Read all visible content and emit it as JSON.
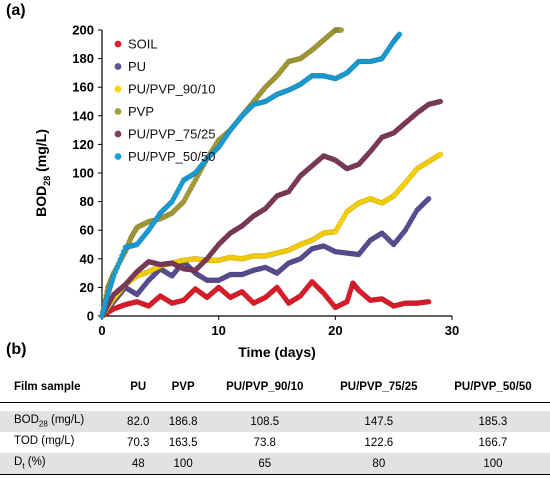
{
  "panel_a_label": "(a)",
  "panel_b_label": "(b)",
  "chart_data": {
    "type": "scatter",
    "xlabel": "Time (days)",
    "ylabel_main": "BOD",
    "ylabel_sub": "28",
    "ylabel_unit": " (mg/L)",
    "xlim": [
      0,
      30
    ],
    "ylim": [
      0,
      200
    ],
    "xticks": [
      "0",
      "10",
      "20",
      "30"
    ],
    "yticks": [
      "0",
      "20",
      "40",
      "60",
      "80",
      "100",
      "120",
      "140",
      "160",
      "180",
      "200"
    ],
    "legend_position": "top-left",
    "series": [
      {
        "name": "SOIL",
        "color": "#e31d2b",
        "points": [
          [
            0,
            0
          ],
          [
            1,
            5
          ],
          [
            2,
            8
          ],
          [
            3,
            10
          ],
          [
            4,
            7
          ],
          [
            5,
            14
          ],
          [
            6,
            9
          ],
          [
            7,
            11
          ],
          [
            8,
            19
          ],
          [
            9,
            13
          ],
          [
            10,
            20
          ],
          [
            11,
            13
          ],
          [
            12,
            17
          ],
          [
            13,
            9
          ],
          [
            14,
            13
          ],
          [
            15,
            20
          ],
          [
            16,
            9
          ],
          [
            17,
            14
          ],
          [
            18,
            24
          ],
          [
            19,
            16
          ],
          [
            20,
            6
          ],
          [
            21,
            10
          ],
          [
            21.5,
            23
          ],
          [
            22,
            18
          ],
          [
            23,
            11
          ],
          [
            24,
            12
          ],
          [
            25,
            7
          ],
          [
            26,
            9
          ],
          [
            27,
            9
          ],
          [
            28,
            10
          ]
        ]
      },
      {
        "name": "PU",
        "color": "#5c4f96",
        "points": [
          [
            0,
            0
          ],
          [
            1,
            10
          ],
          [
            2,
            20
          ],
          [
            3,
            15
          ],
          [
            4,
            25
          ],
          [
            5,
            33
          ],
          [
            6,
            28
          ],
          [
            7,
            38
          ],
          [
            8,
            30
          ],
          [
            9,
            25
          ],
          [
            10,
            25
          ],
          [
            11,
            29
          ],
          [
            12,
            29
          ],
          [
            13,
            32
          ],
          [
            14,
            34
          ],
          [
            15,
            30
          ],
          [
            16,
            37
          ],
          [
            17,
            40
          ],
          [
            18,
            47
          ],
          [
            19,
            49
          ],
          [
            20,
            45
          ],
          [
            21,
            44
          ],
          [
            22,
            43
          ],
          [
            23,
            53
          ],
          [
            24,
            58
          ],
          [
            25,
            50
          ],
          [
            26,
            60
          ],
          [
            27,
            74
          ],
          [
            28,
            82
          ]
        ]
      },
      {
        "name": "PU/PVP_90/10",
        "color": "#ffd700",
        "points": [
          [
            0,
            0
          ],
          [
            1,
            12
          ],
          [
            2,
            22
          ],
          [
            3,
            28
          ],
          [
            4,
            31
          ],
          [
            5,
            35
          ],
          [
            6,
            37
          ],
          [
            7,
            39
          ],
          [
            8,
            40
          ],
          [
            9,
            39
          ],
          [
            10,
            39
          ],
          [
            11,
            41
          ],
          [
            12,
            40
          ],
          [
            13,
            42
          ],
          [
            14,
            42
          ],
          [
            15,
            44
          ],
          [
            16,
            46
          ],
          [
            17,
            50
          ],
          [
            18,
            53
          ],
          [
            19,
            58
          ],
          [
            20,
            59
          ],
          [
            21,
            73
          ],
          [
            22,
            79
          ],
          [
            23,
            82
          ],
          [
            24,
            79
          ],
          [
            25,
            84
          ],
          [
            26,
            93
          ],
          [
            27,
            103
          ],
          [
            28,
            108
          ],
          [
            29,
            113
          ]
        ]
      },
      {
        "name": "PVP",
        "color": "#a69d35",
        "points": [
          [
            0,
            0
          ],
          [
            0.5,
            20
          ],
          [
            1,
            30
          ],
          [
            2,
            45
          ],
          [
            2.5,
            55
          ],
          [
            3,
            62
          ],
          [
            4,
            66
          ],
          [
            5,
            68
          ],
          [
            6,
            72
          ],
          [
            7,
            80
          ],
          [
            8,
            95
          ],
          [
            9,
            110
          ],
          [
            10,
            123
          ],
          [
            11,
            130
          ],
          [
            12,
            140
          ],
          [
            13,
            150
          ],
          [
            14,
            160
          ],
          [
            15,
            168
          ],
          [
            16,
            178
          ],
          [
            17,
            180
          ],
          [
            18,
            186
          ],
          [
            19,
            193
          ],
          [
            20,
            200
          ],
          [
            20.5,
            200
          ]
        ]
      },
      {
        "name": "PU/PVP_75/25",
        "color": "#7f3a5c",
        "points": [
          [
            0,
            0
          ],
          [
            1,
            15
          ],
          [
            2,
            22
          ],
          [
            3,
            31
          ],
          [
            4,
            38
          ],
          [
            5,
            36
          ],
          [
            6,
            37
          ],
          [
            7,
            33
          ],
          [
            8,
            32
          ],
          [
            9,
            40
          ],
          [
            10,
            50
          ],
          [
            11,
            58
          ],
          [
            12,
            63
          ],
          [
            13,
            70
          ],
          [
            14,
            75
          ],
          [
            15,
            84
          ],
          [
            16,
            87
          ],
          [
            17,
            98
          ],
          [
            18,
            105
          ],
          [
            19,
            112
          ],
          [
            20,
            109
          ],
          [
            21,
            103
          ],
          [
            22,
            106
          ],
          [
            23,
            115
          ],
          [
            24,
            125
          ],
          [
            25,
            128
          ],
          [
            26,
            135
          ],
          [
            27,
            142
          ],
          [
            28,
            148
          ],
          [
            29,
            150
          ]
        ]
      },
      {
        "name": "PU/PVP_50/50",
        "color": "#1aa0d8",
        "points": [
          [
            0,
            0
          ],
          [
            0.5,
            15
          ],
          [
            1,
            28
          ],
          [
            2,
            48
          ],
          [
            3,
            50
          ],
          [
            4,
            60
          ],
          [
            5,
            72
          ],
          [
            6,
            80
          ],
          [
            7,
            95
          ],
          [
            8,
            100
          ],
          [
            9,
            110
          ],
          [
            10,
            118
          ],
          [
            11,
            130
          ],
          [
            12,
            140
          ],
          [
            13,
            148
          ],
          [
            14,
            150
          ],
          [
            15,
            155
          ],
          [
            16,
            158
          ],
          [
            17,
            162
          ],
          [
            18,
            168
          ],
          [
            19,
            168
          ],
          [
            20,
            166
          ],
          [
            21,
            170
          ],
          [
            22,
            178
          ],
          [
            23,
            178
          ],
          [
            24,
            180
          ],
          [
            25,
            192
          ],
          [
            25.5,
            197
          ]
        ]
      }
    ]
  },
  "table": {
    "headers": [
      "Film sample",
      "PU",
      "PVP",
      "PU/PVP_90/10",
      "PU/PVP_75/25",
      "PU/PVP_50/50"
    ],
    "rows": [
      {
        "label_main": "BOD",
        "label_sub": "28",
        "label_unit": " (mg/L)",
        "values": [
          "82.0",
          "186.8",
          "108.5",
          "147.5",
          "185.3"
        ]
      },
      {
        "label_main": "TOD (mg/L)",
        "label_sub": "",
        "label_unit": "",
        "values": [
          "70.3",
          "163.5",
          "73.8",
          "122.6",
          "166.7"
        ]
      },
      {
        "label_main": "D",
        "label_sub": "t",
        "label_unit": " (%)",
        "values": [
          "48",
          "100",
          "65",
          "80",
          "100"
        ]
      }
    ]
  }
}
